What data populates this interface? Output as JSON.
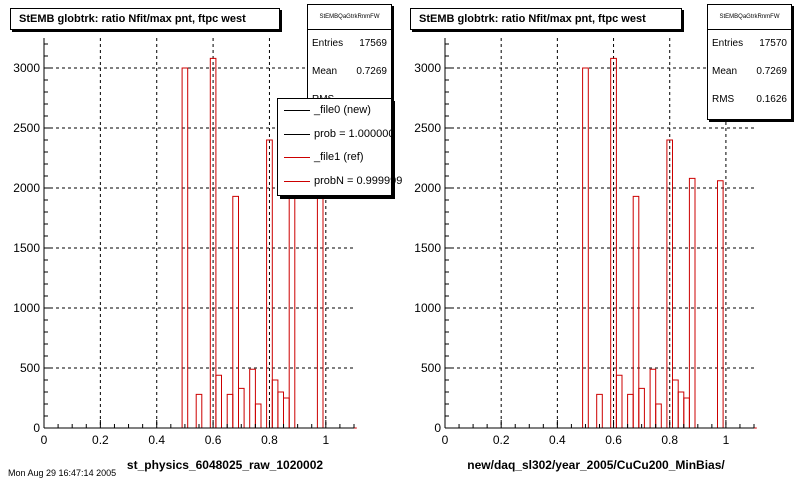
{
  "footer_text": "Mon Aug 29 16:47:14 2005",
  "chart_data": [
    {
      "type": "histogram",
      "title": "StEMB globtrk: ratio Nfit/max pnt, ftpc west",
      "xlabel": "st_physics_6048025_raw_1020002",
      "ylabel": "",
      "xlim": [
        0,
        1.1
      ],
      "ylim": [
        0,
        3250
      ],
      "x_ticks": [
        "0",
        "0.2",
        "0.4",
        "0.6",
        "0.8",
        "1"
      ],
      "y_ticks": [
        "0",
        "500",
        "1000",
        "1500",
        "2000",
        "2500",
        "3000"
      ],
      "grid": true,
      "bin_width": 0.02,
      "series": [
        {
          "color": "#cc0000",
          "x": [
            0.05,
            0.1,
            0.15,
            0.2,
            0.25,
            0.3,
            0.35,
            0.4,
            0.45,
            0.5,
            0.55,
            0.6,
            0.62,
            0.64,
            0.66,
            0.68,
            0.7,
            0.72,
            0.74,
            0.76,
            0.78,
            0.8,
            0.82,
            0.84,
            0.86,
            0.88,
            0.9,
            0.92,
            0.94,
            0.96,
            0.98,
            1.0,
            1.05,
            1.1
          ],
          "values": [
            0,
            0,
            0,
            0,
            0,
            0,
            0,
            0,
            0,
            3000,
            280,
            3080,
            440,
            0,
            280,
            1930,
            330,
            0,
            490,
            200,
            0,
            2400,
            400,
            300,
            250,
            2080,
            0,
            0,
            0,
            0,
            2060,
            0,
            0,
            0
          ]
        }
      ],
      "stats": {
        "name": "StEMBQaGtrkRnmFW",
        "entries_label": "Entries",
        "entries": "17569",
        "mean_label": "Mean",
        "mean": "0.7269",
        "rms_label": "RMS",
        "rms": ""
      },
      "legend": {
        "placement": "top-right",
        "entries": [
          {
            "label": "_file0 (new)",
            "color": "#000000"
          },
          {
            "label": "prob = 1.000000",
            "color": "#000000"
          },
          {
            "label": "_file1 (ref)",
            "color": "#cc0000"
          },
          {
            "label": "probN = 0.999999",
            "color": "#cc0000"
          }
        ]
      }
    },
    {
      "type": "histogram",
      "title": "StEMB globtrk: ratio Nfit/max pnt, ftpc west",
      "xlabel": "new/daq_sl302/year_2005/CuCu200_MinBias/",
      "ylabel": "",
      "xlim": [
        0,
        1.1
      ],
      "ylim": [
        0,
        3250
      ],
      "x_ticks": [
        "0",
        "0.2",
        "0.4",
        "0.6",
        "0.8",
        "1"
      ],
      "y_ticks": [
        "0",
        "500",
        "1000",
        "1500",
        "2000",
        "2500",
        "3000"
      ],
      "grid": true,
      "bin_width": 0.02,
      "series": [
        {
          "color": "#cc0000",
          "x": [
            0.05,
            0.1,
            0.15,
            0.2,
            0.25,
            0.3,
            0.35,
            0.4,
            0.45,
            0.5,
            0.55,
            0.6,
            0.62,
            0.64,
            0.66,
            0.68,
            0.7,
            0.72,
            0.74,
            0.76,
            0.78,
            0.8,
            0.82,
            0.84,
            0.86,
            0.88,
            0.9,
            0.92,
            0.94,
            0.96,
            0.98,
            1.0,
            1.05,
            1.1
          ],
          "values": [
            0,
            0,
            0,
            0,
            0,
            0,
            0,
            0,
            0,
            3000,
            280,
            3080,
            440,
            0,
            280,
            1930,
            330,
            0,
            490,
            200,
            0,
            2400,
            400,
            300,
            250,
            2080,
            0,
            0,
            0,
            0,
            2060,
            0,
            0,
            0
          ]
        }
      ],
      "stats": {
        "name": "StEMBQaGtrkRnmFW",
        "entries_label": "Entries",
        "entries": "17570",
        "mean_label": "Mean",
        "mean": "0.7269",
        "rms_label": "RMS",
        "rms": "0.1626"
      }
    }
  ]
}
